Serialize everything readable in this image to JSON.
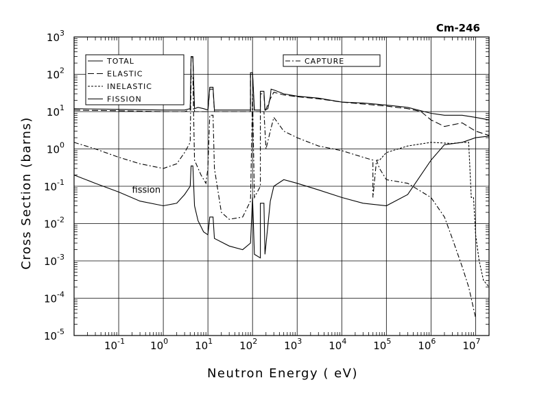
{
  "chart_data": {
    "type": "line",
    "title": "Cm-246",
    "xlabel": "Neutron Energy (  eV)",
    "ylabel": "Cross Section (barns)",
    "x_scale": "log",
    "y_scale": "log",
    "xlim": [
      0.01,
      20000000
    ],
    "ylim": [
      1e-05,
      1000
    ],
    "grid": true,
    "x_ticks": [
      {
        "value": 0.1,
        "base": "10",
        "exp": "-1"
      },
      {
        "value": 1,
        "base": "10",
        "exp": "0"
      },
      {
        "value": 10,
        "base": "10",
        "exp": "1"
      },
      {
        "value": 100,
        "base": "10",
        "exp": "2"
      },
      {
        "value": 1000,
        "base": "10",
        "exp": "3"
      },
      {
        "value": 10000,
        "base": "10",
        "exp": "4"
      },
      {
        "value": 100000,
        "base": "10",
        "exp": "5"
      },
      {
        "value": 1000000,
        "base": "10",
        "exp": "6"
      },
      {
        "value": 10000000,
        "base": "10",
        "exp": "7"
      }
    ],
    "y_ticks": [
      {
        "value": 1000,
        "base": "10",
        "exp": "3"
      },
      {
        "value": 100,
        "base": "10",
        "exp": "2"
      },
      {
        "value": 10,
        "base": "10",
        "exp": "1"
      },
      {
        "value": 1,
        "base": "10",
        "exp": "0"
      },
      {
        "value": 0.1,
        "base": "10",
        "exp": "-1"
      },
      {
        "value": 0.01,
        "base": "10",
        "exp": "-2"
      },
      {
        "value": 0.001,
        "base": "10",
        "exp": "-3"
      },
      {
        "value": 0.0001,
        "base": "10",
        "exp": "-4"
      },
      {
        "value": 1e-05,
        "base": "10",
        "exp": "-5"
      }
    ],
    "legend": {
      "placement": "top-left",
      "entries": [
        "TOTAL",
        "ELASTIC",
        "INELASTIC",
        "FISSION"
      ]
    },
    "legend2": {
      "placement": "top-center",
      "entries": [
        "CAPTURE"
      ]
    },
    "annotations": [
      {
        "text": "fission",
        "x": 1,
        "y": 0.08
      }
    ],
    "series": [
      {
        "name": "TOTAL",
        "style": "solid",
        "points": [
          [
            0.01,
            12
          ],
          [
            0.1,
            11.5
          ],
          [
            1,
            11
          ],
          [
            3,
            11
          ],
          [
            4,
            12
          ],
          [
            4.2,
            300
          ],
          [
            4.6,
            300
          ],
          [
            5,
            12
          ],
          [
            6,
            13
          ],
          [
            8,
            12
          ],
          [
            10,
            11
          ],
          [
            11,
            45
          ],
          [
            13,
            45
          ],
          [
            14,
            11
          ],
          [
            30,
            11
          ],
          [
            90,
            11
          ],
          [
            90,
            110
          ],
          [
            100,
            110
          ],
          [
            110,
            11
          ],
          [
            150,
            11
          ],
          [
            150,
            35
          ],
          [
            180,
            35
          ],
          [
            190,
            11
          ],
          [
            220,
            12
          ],
          [
            250,
            25
          ],
          [
            260,
            40
          ],
          [
            300,
            38
          ],
          [
            500,
            30
          ],
          [
            1000,
            26
          ],
          [
            3000,
            23
          ],
          [
            10000,
            18
          ],
          [
            30000,
            17
          ],
          [
            100000,
            15
          ],
          [
            300000,
            13
          ],
          [
            1000000,
            9
          ],
          [
            2000000,
            8
          ],
          [
            5000000,
            8
          ],
          [
            10000000,
            7
          ],
          [
            20000000,
            6
          ]
        ]
      },
      {
        "name": "ELASTIC",
        "style": "dashed",
        "points": [
          [
            0.01,
            11
          ],
          [
            0.1,
            10.5
          ],
          [
            1,
            10
          ],
          [
            3,
            10
          ],
          [
            4,
            11
          ],
          [
            4.2,
            280
          ],
          [
            4.6,
            280
          ],
          [
            5,
            10
          ],
          [
            8,
            10
          ],
          [
            10,
            10
          ],
          [
            11,
            40
          ],
          [
            13,
            40
          ],
          [
            14,
            10
          ],
          [
            30,
            10
          ],
          [
            90,
            10
          ],
          [
            90,
            100
          ],
          [
            100,
            100
          ],
          [
            110,
            10
          ],
          [
            150,
            10
          ],
          [
            150,
            30
          ],
          [
            180,
            30
          ],
          [
            190,
            10
          ],
          [
            250,
            22
          ],
          [
            300,
            33
          ],
          [
            500,
            28
          ],
          [
            1000,
            25
          ],
          [
            3000,
            22
          ],
          [
            10000,
            18
          ],
          [
            30000,
            16
          ],
          [
            100000,
            14
          ],
          [
            300000,
            12
          ],
          [
            600000,
            10
          ],
          [
            1000000,
            6
          ],
          [
            2000000,
            4
          ],
          [
            5000000,
            5
          ],
          [
            10000000,
            3
          ],
          [
            20000000,
            2.3
          ]
        ]
      },
      {
        "name": "CAPTURE",
        "style": "dashdot",
        "points": [
          [
            0.01,
            1.5
          ],
          [
            0.03,
            1
          ],
          [
            0.1,
            0.6
          ],
          [
            0.3,
            0.4
          ],
          [
            1,
            0.3
          ],
          [
            2,
            0.4
          ],
          [
            3,
            0.8
          ],
          [
            4,
            1.5
          ],
          [
            4.2,
            90
          ],
          [
            4.6,
            90
          ],
          [
            5,
            0.5
          ],
          [
            7,
            0.2
          ],
          [
            9,
            0.12
          ],
          [
            10,
            0.3
          ],
          [
            11,
            8
          ],
          [
            13,
            8
          ],
          [
            14,
            0.3
          ],
          [
            20,
            0.02
          ],
          [
            30,
            0.013
          ],
          [
            60,
            0.015
          ],
          [
            90,
            0.04
          ],
          [
            100,
            30
          ],
          [
            110,
            0.05
          ],
          [
            150,
            0.1
          ],
          [
            150,
            10
          ],
          [
            180,
            10
          ],
          [
            200,
            1
          ],
          [
            250,
            3
          ],
          [
            300,
            7
          ],
          [
            500,
            3
          ],
          [
            1000,
            2
          ],
          [
            3000,
            1.2
          ],
          [
            10000,
            0.9
          ],
          [
            30000,
            0.6
          ],
          [
            50000,
            0.5
          ],
          [
            50000,
            0.05
          ],
          [
            60000,
            0.5
          ],
          [
            70000,
            0.3
          ],
          [
            100000,
            0.15
          ],
          [
            300000,
            0.12
          ],
          [
            1000000,
            0.05
          ],
          [
            2000000,
            0.015
          ],
          [
            3000000,
            0.004
          ],
          [
            5000000,
            0.0007
          ],
          [
            7000000,
            0.0002
          ],
          [
            10000000,
            3e-05
          ]
        ]
      },
      {
        "name": "INELASTIC",
        "style": "dotted",
        "points": [
          [
            60000,
            0.5
          ],
          [
            70000,
            0.5
          ],
          [
            100000,
            0.8
          ],
          [
            300000,
            1.2
          ],
          [
            1000000,
            1.5
          ],
          [
            3000000,
            1.4
          ],
          [
            5000000,
            1.5
          ],
          [
            7000000,
            1.5
          ],
          [
            8000000,
            0.05
          ],
          [
            9000000,
            0.05
          ],
          [
            10000000,
            0.005
          ],
          [
            12000000,
            0.001
          ],
          [
            15000000,
            0.0003
          ],
          [
            20000000,
            0.0002
          ]
        ]
      },
      {
        "name": "FISSION",
        "style": "solid",
        "points": [
          [
            0.01,
            0.2
          ],
          [
            0.03,
            0.12
          ],
          [
            0.1,
            0.07
          ],
          [
            0.3,
            0.04
          ],
          [
            1,
            0.03
          ],
          [
            2,
            0.035
          ],
          [
            3,
            0.06
          ],
          [
            4,
            0.1
          ],
          [
            4.2,
            0.35
          ],
          [
            4.6,
            0.35
          ],
          [
            5,
            0.03
          ],
          [
            6,
            0.012
          ],
          [
            8,
            0.006
          ],
          [
            10,
            0.005
          ],
          [
            11,
            0.015
          ],
          [
            13,
            0.015
          ],
          [
            14,
            0.004
          ],
          [
            30,
            0.0025
          ],
          [
            60,
            0.002
          ],
          [
            90,
            0.003
          ],
          [
            100,
            0.05
          ],
          [
            110,
            0.0015
          ],
          [
            150,
            0.0012
          ],
          [
            150,
            0.035
          ],
          [
            180,
            0.035
          ],
          [
            190,
            0.0015
          ],
          [
            250,
            0.04
          ],
          [
            300,
            0.1
          ],
          [
            500,
            0.15
          ],
          [
            1000,
            0.12
          ],
          [
            3000,
            0.08
          ],
          [
            10000,
            0.05
          ],
          [
            30000,
            0.035
          ],
          [
            100000,
            0.03
          ],
          [
            300000,
            0.06
          ],
          [
            1000000,
            0.5
          ],
          [
            2000000,
            1.3
          ],
          [
            5000000,
            1.5
          ],
          [
            10000000,
            2
          ],
          [
            20000000,
            2.2
          ]
        ]
      }
    ]
  }
}
